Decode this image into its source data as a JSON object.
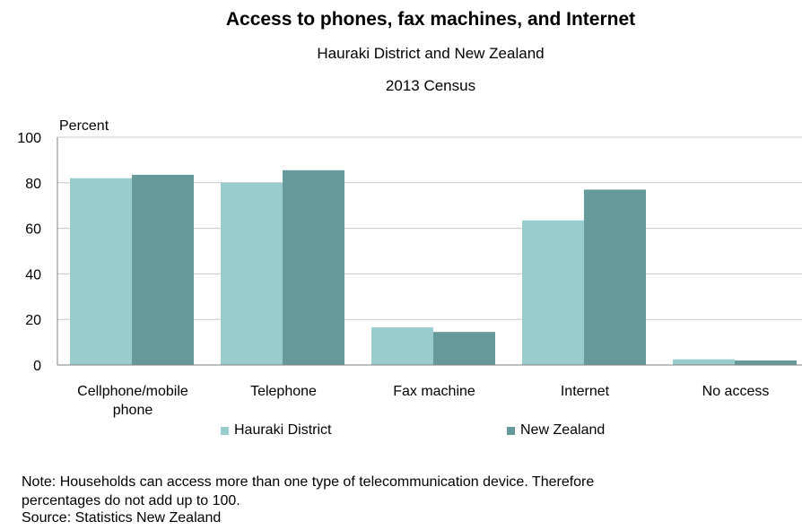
{
  "chart_data": {
    "type": "bar",
    "title": "Access to phones, fax machines, and Internet",
    "subtitle_1": "Hauraki District and New Zealand",
    "subtitle_2": "2013 Census",
    "ylabel": "Percent",
    "ylim": [
      0,
      100
    ],
    "yticks": [
      "0",
      "20",
      "40",
      "60",
      "80",
      "100"
    ],
    "categories": [
      "Cellphone/mobile\nphone",
      "Telephone",
      "Fax machine",
      "Internet",
      "No access"
    ],
    "series": [
      {
        "name": "Hauraki District",
        "color": "#99cccc",
        "values": [
          82,
          80,
          16.5,
          63.5,
          2.5
        ]
      },
      {
        "name": "New Zealand",
        "color": "#669999",
        "values": [
          83.5,
          85.5,
          14.5,
          77,
          2
        ]
      }
    ],
    "grid": true,
    "legend_position": "bottom"
  },
  "notes": {
    "line1": "Note: Households can access more than one type of telecommunication device. Therefore",
    "line2": "percentages do not add up to 100.",
    "source": "Source: Statistics New Zealand"
  }
}
